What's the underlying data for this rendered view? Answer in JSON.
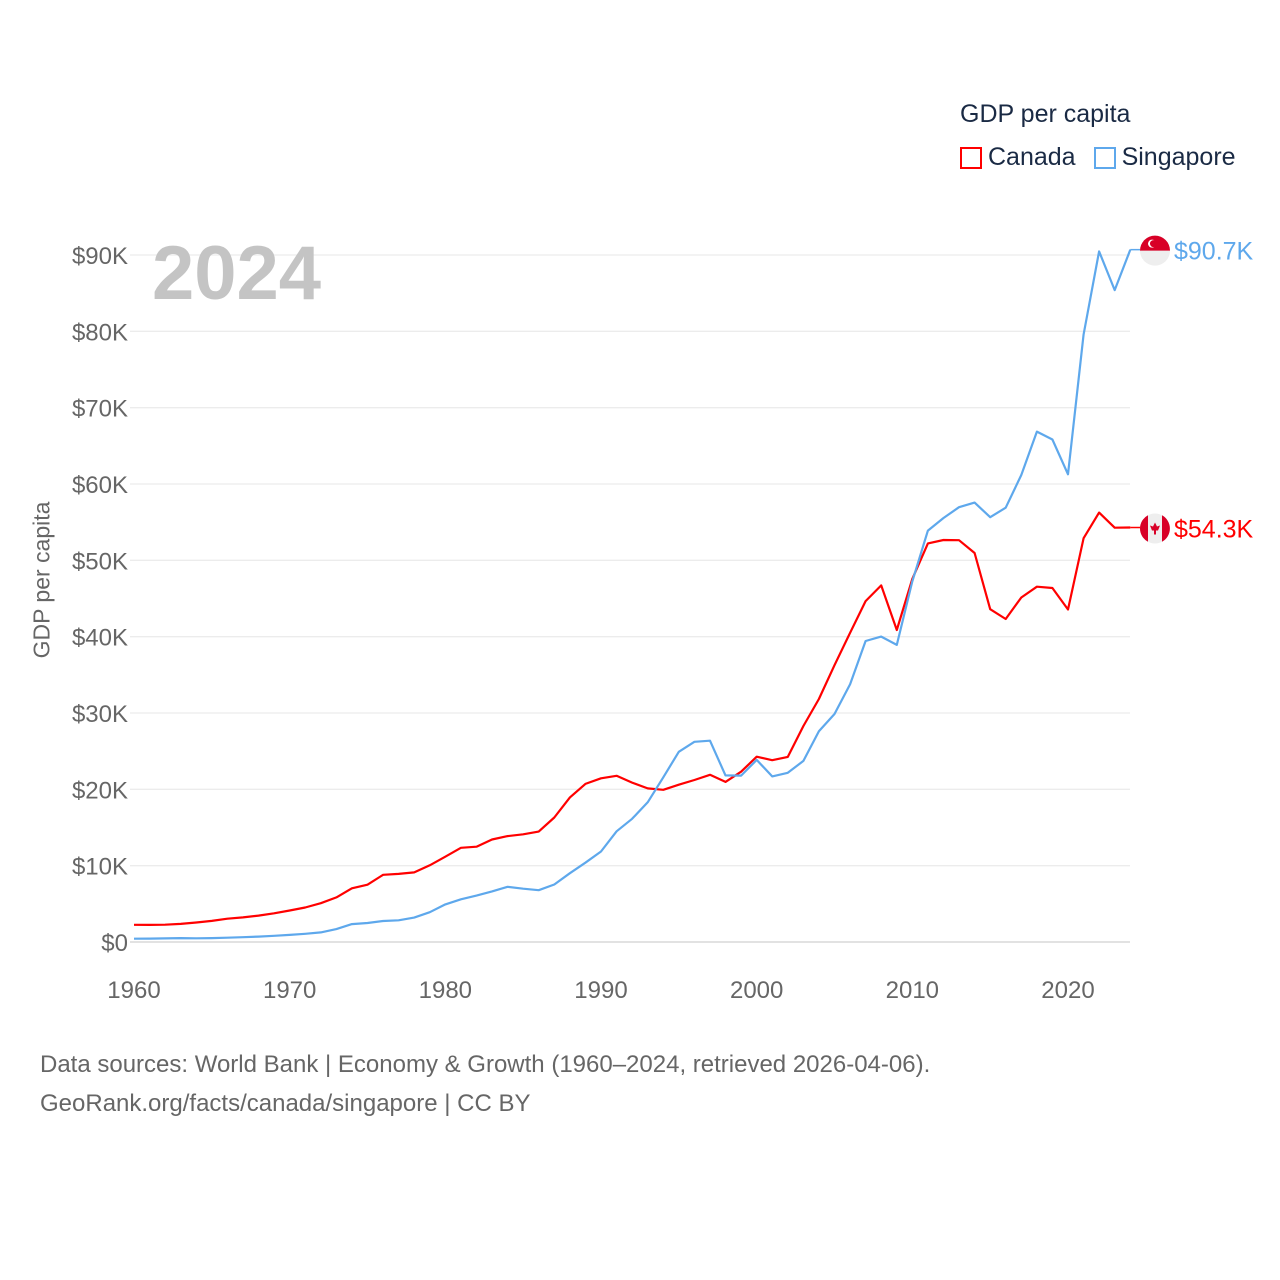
{
  "chart_data": {
    "type": "line",
    "title": "GDP per capita",
    "year_stamp": "2024",
    "xlabel": "",
    "ylabel": "GDP per capita",
    "xlim": [
      1960,
      2024
    ],
    "ylim": [
      0,
      92000
    ],
    "x_ticks": [
      1960,
      1970,
      1980,
      1990,
      2000,
      2010,
      2020
    ],
    "x_tick_labels": [
      "1960",
      "1970",
      "1980",
      "1990",
      "2000",
      "2010",
      "2020"
    ],
    "y_ticks": [
      0,
      10000,
      20000,
      30000,
      40000,
      50000,
      60000,
      70000,
      80000,
      90000
    ],
    "y_tick_labels": [
      "$0",
      "$10K",
      "$20K",
      "$30K",
      "$40K",
      "$50K",
      "$60K",
      "$70K",
      "$80K",
      "$90K"
    ],
    "grid": true,
    "legend_placement": "top-right",
    "x_start": 1960,
    "series": [
      {
        "name": "Canada",
        "color": "#ff0000",
        "end_label": "$54.3K",
        "flag": "canada-flag",
        "values": [
          2259,
          2240,
          2269,
          2374,
          2555,
          2770,
          3047,
          3217,
          3463,
          3764,
          4122,
          4520,
          5089,
          5838,
          7033,
          7512,
          8809,
          8919,
          9124,
          10044,
          11171,
          12337,
          12482,
          13425,
          13877,
          14115,
          14460,
          16309,
          18937,
          20716,
          21448,
          21768,
          20880,
          20121,
          19935,
          20613,
          21227,
          21902,
          20968,
          22315,
          24271,
          23823,
          24255,
          28300,
          31830,
          36267,
          40504,
          44660,
          46711,
          40876,
          47562,
          52224,
          52670,
          52635,
          50956,
          43596,
          42316,
          45129,
          46549,
          46374,
          43562,
          52900,
          56256,
          54279,
          54300
        ]
      },
      {
        "name": "Singapore",
        "color": "#5ea8ec",
        "end_label": "$90.7K",
        "flag": "singapore-flag",
        "values": [
          428,
          449,
          472,
          511,
          485,
          517,
          567,
          625,
          709,
          813,
          926,
          1071,
          1264,
          1685,
          2342,
          2490,
          2747,
          2846,
          3194,
          3901,
          4928,
          5596,
          6077,
          6633,
          7228,
          6983,
          6785,
          7539,
          9017,
          10395,
          11862,
          14502,
          16136,
          18302,
          21578,
          24915,
          26233,
          26376,
          21829,
          21796,
          23853,
          21700,
          22160,
          23730,
          27610,
          29870,
          33769,
          39432,
          40008,
          38927,
          47237,
          53891,
          55546,
          56967,
          57562,
          55647,
          56895,
          61176,
          66859,
          65831,
          61274,
          79601,
          90470,
          85400,
          90700
        ]
      }
    ]
  },
  "footer": {
    "line1": "Data sources: World Bank | Economy & Growth (1960–2024, retrieved 2026-04-06).",
    "line2": "GeoRank.org/facts/canada/singapore | CC BY"
  }
}
